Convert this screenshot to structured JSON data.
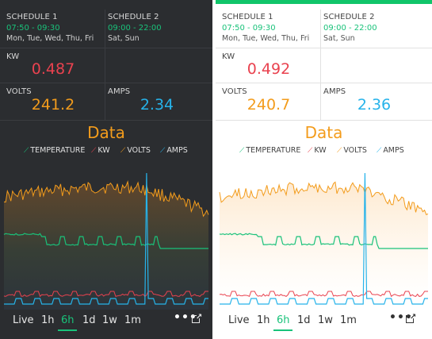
{
  "dark": {
    "schedule1": {
      "label": "SCHEDULE 1",
      "time": "07:50 - 09:30",
      "days": "Mon, Tue, Wed, Thu, Fri"
    },
    "schedule2": {
      "label": "SCHEDULE 2",
      "time": "09:00 - 22:00",
      "days": "Sat, Sun"
    },
    "kw": {
      "label": "KW",
      "value": "0.487"
    },
    "volts": {
      "label": "VOLTS",
      "value": "241.2"
    },
    "amps": {
      "label": "AMPS",
      "value": "2.34"
    },
    "chart": {
      "title": "Data"
    },
    "legend": [
      "TEMPERATURE",
      "KW",
      "VOLTS",
      "AMPS"
    ],
    "ranges": [
      "Live",
      "1h",
      "6h",
      "1d",
      "1w",
      "1m"
    ],
    "active_range": "6h"
  },
  "light": {
    "schedule1": {
      "label": "SCHEDULE 1",
      "time": "07:50 - 09:30",
      "days": "Mon, Tue, Wed, Thu, Fri"
    },
    "schedule2": {
      "label": "SCHEDULE 2",
      "time": "09:00 - 22:00",
      "days": "Sat, Sun"
    },
    "kw": {
      "label": "KW",
      "value": "0.492"
    },
    "volts": {
      "label": "VOLTS",
      "value": "240.7"
    },
    "amps": {
      "label": "AMPS",
      "value": "2.36"
    },
    "chart": {
      "title": "Data"
    },
    "legend": [
      "TEMPERATURE",
      "KW",
      "VOLTS",
      "AMPS"
    ],
    "ranges": [
      "Live",
      "1h",
      "6h",
      "1d",
      "1w",
      "1m"
    ],
    "active_range": "6h"
  },
  "more_label": "•••",
  "colors": {
    "temperature": "#19c27a",
    "kw": "#e9424f",
    "volts": "#f39c1c",
    "amps": "#26b3ea",
    "accent": "#10c56a"
  }
}
